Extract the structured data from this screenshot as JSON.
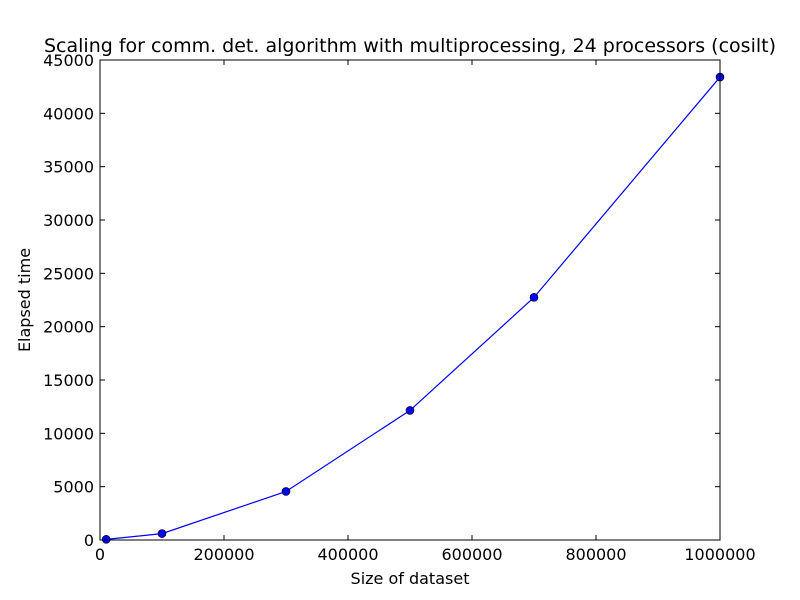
{
  "chart_data": {
    "type": "line",
    "title": "Scaling for comm. det. algorithm with multiprocessing, 24 processors (cosilt)",
    "xlabel": "Size of dataset",
    "ylabel": "Elapsed time",
    "xlim": [
      0,
      1000000
    ],
    "ylim": [
      0,
      45000
    ],
    "xticks": [
      0,
      200000,
      400000,
      600000,
      800000,
      1000000
    ],
    "yticks": [
      0,
      5000,
      10000,
      15000,
      20000,
      25000,
      30000,
      35000,
      40000,
      45000
    ],
    "grid": false,
    "series": [
      {
        "color": "#0000ff",
        "marker": "circle",
        "x": [
          10000,
          100000,
          300000,
          500000,
          700000,
          1000000
        ],
        "y": [
          60,
          600,
          4550,
          12150,
          22750,
          43400
        ]
      }
    ]
  }
}
